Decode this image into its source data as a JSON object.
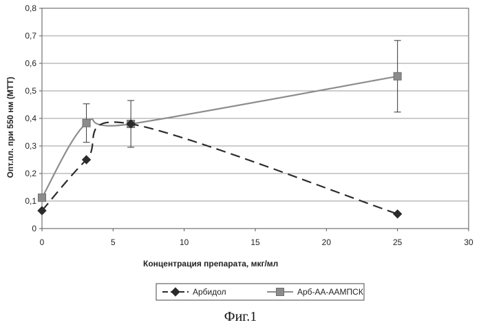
{
  "caption": "Фиг.1",
  "chart_data": {
    "type": "line",
    "xlabel": "Концентрация препарата, мкг/мл",
    "ylabel": "Опт.пл. при 550 нм (МТТ)",
    "xlim": [
      0,
      30
    ],
    "ylim": [
      0,
      0.8
    ],
    "x_ticks": [
      "0",
      "5",
      "10",
      "15",
      "20",
      "25",
      "30"
    ],
    "y_ticks": [
      "0",
      "0,1",
      "0,2",
      "0,3",
      "0,4",
      "0,5",
      "0,6",
      "0,7",
      "0,8"
    ],
    "grid": "horizontal",
    "legend_position": "bottom",
    "series": [
      {
        "name": "Арбидол",
        "style": "dashed",
        "marker": "diamond",
        "color": "#2b2b2b",
        "points": [
          {
            "x": 0,
            "y": 0.065
          },
          {
            "x": 3.125,
            "y": 0.25
          },
          {
            "x": 6.25,
            "y": 0.38
          },
          {
            "x": 25,
            "y": 0.053
          }
        ]
      },
      {
        "name": "Арб-АА-ААМПСК",
        "style": "solid",
        "marker": "square",
        "color": "#8c8c8c",
        "points": [
          {
            "x": 0,
            "y": 0.112,
            "err": 0
          },
          {
            "x": 3.125,
            "y": 0.383,
            "err": 0.07
          },
          {
            "x": 6.25,
            "y": 0.38,
            "err": 0.085
          },
          {
            "x": 25,
            "y": 0.553,
            "err": 0.13
          }
        ]
      }
    ]
  }
}
